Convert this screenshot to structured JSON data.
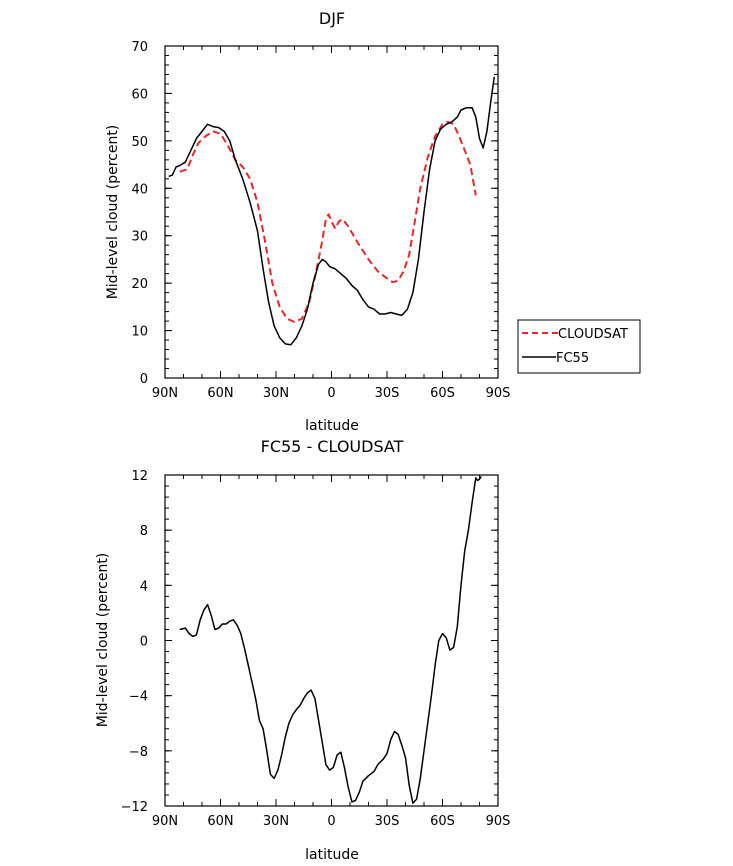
{
  "chart_data": [
    {
      "type": "line",
      "title": "DJF",
      "xlabel": "latitude",
      "ylabel": "Mid-level cloud (percent)",
      "xlim": [
        90,
        -90
      ],
      "ylim": [
        0,
        70
      ],
      "x_ticks": [
        90,
        60,
        30,
        0,
        -30,
        -60,
        -90
      ],
      "x_tick_labels": [
        "90N",
        "60N",
        "30N",
        "0",
        "30S",
        "60S",
        "90S"
      ],
      "y_ticks": [
        0,
        10,
        20,
        30,
        40,
        50,
        60,
        70
      ],
      "y_tick_labels": [
        "0",
        "10",
        "20",
        "30",
        "40",
        "50",
        "60",
        "70"
      ],
      "grid": false,
      "legend_position": "outside-right",
      "series": [
        {
          "name": "CLOUDSAT",
          "color": "#e8272a",
          "dash": "dashed",
          "points": [
            [
              82,
              43.5
            ],
            [
              78,
              44
            ],
            [
              75,
              47
            ],
            [
              72,
              49.5
            ],
            [
              68,
              51
            ],
            [
              64,
              52
            ],
            [
              60,
              51.5
            ],
            [
              56,
              49
            ],
            [
              52,
              46
            ],
            [
              48,
              44.5
            ],
            [
              44,
              42
            ],
            [
              40,
              37
            ],
            [
              36,
              29
            ],
            [
              32,
              20
            ],
            [
              28,
              15
            ],
            [
              24,
              12.5
            ],
            [
              20,
              11.8
            ],
            [
              16,
              12.5
            ],
            [
              12,
              16
            ],
            [
              8,
              23
            ],
            [
              5,
              29
            ],
            [
              3,
              33.5
            ],
            [
              1.5,
              34.5
            ],
            [
              0,
              33
            ],
            [
              -2,
              31.5
            ],
            [
              -4,
              33
            ],
            [
              -6,
              33.5
            ],
            [
              -9,
              32
            ],
            [
              -12,
              30
            ],
            [
              -15,
              28
            ],
            [
              -20,
              25
            ],
            [
              -25,
              22.5
            ],
            [
              -30,
              21
            ],
            [
              -33,
              20.2
            ],
            [
              -36,
              20.5
            ],
            [
              -39,
              22.5
            ],
            [
              -42,
              26
            ],
            [
              -45,
              33
            ],
            [
              -48,
              40
            ],
            [
              -52,
              46.5
            ],
            [
              -56,
              51
            ],
            [
              -60,
              53.5
            ],
            [
              -63,
              54
            ],
            [
              -66,
              53.5
            ],
            [
              -69,
              51
            ],
            [
              -72,
              48
            ],
            [
              -75,
              45
            ],
            [
              -78,
              38.5
            ]
          ]
        },
        {
          "name": "FC55",
          "color": "#000000",
          "dash": "solid",
          "points": [
            [
              88,
              42.5
            ],
            [
              86,
              42.8
            ],
            [
              84,
              44.5
            ],
            [
              82,
              44.8
            ],
            [
              79,
              45.5
            ],
            [
              76,
              48
            ],
            [
              73,
              50.5
            ],
            [
              70,
              52
            ],
            [
              67,
              53.5
            ],
            [
              64,
              53
            ],
            [
              61,
              52.8
            ],
            [
              58,
              52
            ],
            [
              55,
              50
            ],
            [
              52,
              46
            ],
            [
              48,
              42
            ],
            [
              44,
              37
            ],
            [
              40,
              31
            ],
            [
              37,
              23
            ],
            [
              34,
              16
            ],
            [
              31,
              11
            ],
            [
              28,
              8.5
            ],
            [
              25,
              7.2
            ],
            [
              22,
              7
            ],
            [
              19,
              8.5
            ],
            [
              16,
              11
            ],
            [
              13,
              14.5
            ],
            [
              10,
              20
            ],
            [
              7,
              24
            ],
            [
              5,
              25
            ],
            [
              3,
              24.5
            ],
            [
              1,
              23.5
            ],
            [
              -2,
              23
            ],
            [
              -5,
              22
            ],
            [
              -8,
              21
            ],
            [
              -11,
              19.5
            ],
            [
              -14,
              18.5
            ],
            [
              -17,
              16.5
            ],
            [
              -20,
              15
            ],
            [
              -23,
              14.5
            ],
            [
              -26,
              13.5
            ],
            [
              -29,
              13.5
            ],
            [
              -32,
              13.8
            ],
            [
              -35,
              13.5
            ],
            [
              -38,
              13.2
            ],
            [
              -41,
              14.5
            ],
            [
              -44,
              18
            ],
            [
              -47,
              25
            ],
            [
              -50,
              35
            ],
            [
              -53,
              44
            ],
            [
              -56,
              50
            ],
            [
              -59,
              52.5
            ],
            [
              -62,
              53.5
            ],
            [
              -65,
              54
            ],
            [
              -68,
              55
            ],
            [
              -70,
              56.5
            ],
            [
              -73,
              57
            ],
            [
              -76,
              57
            ],
            [
              -78,
              55
            ],
            [
              -80,
              50.5
            ],
            [
              -82,
              48.5
            ],
            [
              -84,
              52
            ],
            [
              -86,
              58
            ],
            [
              -88,
              63.5
            ]
          ]
        }
      ]
    },
    {
      "type": "line",
      "title": "FC55 - CLOUDSAT",
      "xlabel": "latitude",
      "ylabel": "Mid-level cloud (percent)",
      "xlim": [
        90,
        -90
      ],
      "ylim": [
        -12,
        12
      ],
      "x_ticks": [
        90,
        60,
        30,
        0,
        -30,
        -60,
        -90
      ],
      "x_tick_labels": [
        "90N",
        "60N",
        "30N",
        "0",
        "30S",
        "60S",
        "90S"
      ],
      "y_ticks": [
        -12,
        -8,
        -4,
        0,
        4,
        8,
        12
      ],
      "y_tick_labels": [
        "−12",
        "−8",
        "−4",
        "0",
        "4",
        "8",
        "12"
      ],
      "grid": false,
      "series": [
        {
          "color": "#000000",
          "dash": "solid",
          "points": [
            [
              82,
              0.8
            ],
            [
              79,
              0.9
            ],
            [
              77,
              0.5
            ],
            [
              75,
              0.3
            ],
            [
              73,
              0.4
            ],
            [
              71,
              1.5
            ],
            [
              69,
              2.2
            ],
            [
              67,
              2.6
            ],
            [
              65,
              1.8
            ],
            [
              63,
              0.8
            ],
            [
              61,
              0.9
            ],
            [
              59,
              1.2
            ],
            [
              57,
              1.2
            ],
            [
              55,
              1.4
            ],
            [
              53,
              1.5
            ],
            [
              51,
              1.1
            ],
            [
              49,
              0.5
            ],
            [
              47,
              -0.6
            ],
            [
              45,
              -1.8
            ],
            [
              43,
              -3
            ],
            [
              41,
              -4.2
            ],
            [
              39,
              -5.8
            ],
            [
              37,
              -6.4
            ],
            [
              35,
              -8
            ],
            [
              33,
              -9.7
            ],
            [
              31,
              -10
            ],
            [
              29,
              -9.4
            ],
            [
              27,
              -8.3
            ],
            [
              25,
              -7
            ],
            [
              23,
              -6
            ],
            [
              21,
              -5.4
            ],
            [
              19,
              -5
            ],
            [
              17,
              -4.7
            ],
            [
              15,
              -4.2
            ],
            [
              13,
              -3.8
            ],
            [
              11,
              -3.6
            ],
            [
              9,
              -4.2
            ],
            [
              7,
              -5.8
            ],
            [
              5,
              -7.4
            ],
            [
              3,
              -9
            ],
            [
              1,
              -9.4
            ],
            [
              -1,
              -9.2
            ],
            [
              -3,
              -8.3
            ],
            [
              -5,
              -8.1
            ],
            [
              -7,
              -9.2
            ],
            [
              -9,
              -10.6
            ],
            [
              -11,
              -11.7
            ],
            [
              -13,
              -11.6
            ],
            [
              -15,
              -11
            ],
            [
              -17,
              -10.2
            ],
            [
              -20,
              -9.8
            ],
            [
              -23,
              -9.5
            ],
            [
              -25,
              -9
            ],
            [
              -28,
              -8.6
            ],
            [
              -30,
              -8.2
            ],
            [
              -32,
              -7.2
            ],
            [
              -34,
              -6.6
            ],
            [
              -36,
              -6.8
            ],
            [
              -38,
              -7.6
            ],
            [
              -40,
              -8.5
            ],
            [
              -42,
              -10.5
            ],
            [
              -44,
              -11.8
            ],
            [
              -46,
              -11.5
            ],
            [
              -48,
              -10
            ],
            [
              -50,
              -8
            ],
            [
              -52,
              -6
            ],
            [
              -54,
              -4
            ],
            [
              -56,
              -1.8
            ],
            [
              -58,
              0
            ],
            [
              -60,
              0.5
            ],
            [
              -62,
              0.2
            ],
            [
              -64,
              -0.7
            ],
            [
              -66,
              -0.5
            ],
            [
              -68,
              1
            ],
            [
              -70,
              4
            ],
            [
              -72,
              6.5
            ],
            [
              -74,
              8
            ],
            [
              -76,
              10
            ],
            [
              -78,
              11.8
            ],
            [
              -79,
              11.6
            ],
            [
              -80,
              11.7
            ],
            [
              -81,
              11.9
            ]
          ]
        }
      ]
    }
  ],
  "legend": {
    "items": [
      {
        "label": "CLOUDSAT",
        "color": "#e8272a",
        "dash": "dashed"
      },
      {
        "label": "FC55",
        "color": "#000000",
        "dash": "solid"
      }
    ]
  }
}
